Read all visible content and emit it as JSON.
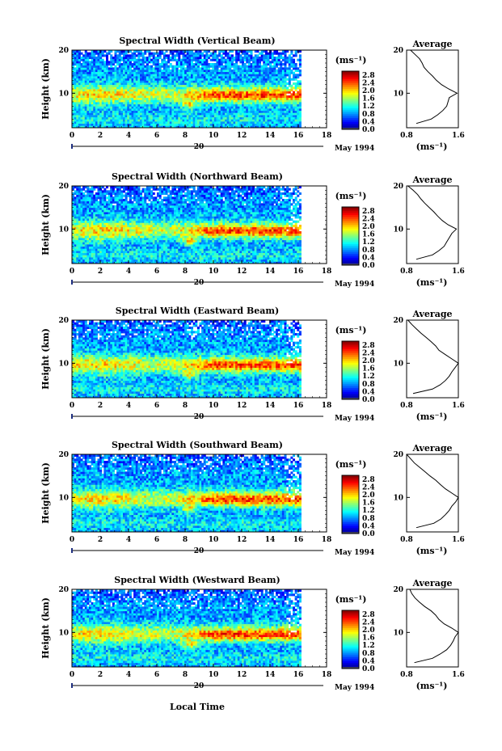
{
  "figure": {
    "date_label": "May 1994",
    "day_label": "20",
    "xlabel": "Local Time",
    "ylabel": "Height (km)",
    "unit_label": "(ms⁻¹)",
    "average_title": "Average",
    "average_xlabel": "(ms⁻¹)"
  },
  "chart_data": [
    {
      "type": "heatmap",
      "title": "Spectral Width (Vertical Beam)",
      "x_ticks": [
        "0",
        "2",
        "4",
        "6",
        "8",
        "10",
        "12",
        "14",
        "16",
        "18"
      ],
      "xlim": [
        0,
        18
      ],
      "y_ticks": [
        "10",
        "20"
      ],
      "ylim": [
        2,
        20
      ],
      "data_xlim": [
        0,
        16.2
      ],
      "colorbar": {
        "ticks": [
          "0.0",
          "0.4",
          "0.8",
          "1.2",
          "1.6",
          "2.0",
          "2.4",
          "2.8"
        ],
        "range": [
          0,
          3.0
        ]
      },
      "average": {
        "x_ticks": [
          "0.8",
          "1.6"
        ],
        "xlim": [
          0.8,
          1.6
        ],
        "profile_heights": [
          3,
          4,
          5,
          6,
          7,
          8,
          9,
          10,
          11,
          12,
          13,
          14,
          15,
          16,
          17,
          18,
          19,
          20
        ],
        "profile_values": [
          0.95,
          1.18,
          1.28,
          1.36,
          1.42,
          1.44,
          1.46,
          1.58,
          1.45,
          1.34,
          1.26,
          1.2,
          1.13,
          1.07,
          1.04,
          1.0,
          0.93,
          0.86
        ]
      }
    },
    {
      "type": "heatmap",
      "title": "Spectral Width (Northward Beam)",
      "x_ticks": [
        "0",
        "2",
        "4",
        "6",
        "8",
        "10",
        "12",
        "14",
        "16",
        "18"
      ],
      "xlim": [
        0,
        18
      ],
      "y_ticks": [
        "10",
        "20"
      ],
      "ylim": [
        2,
        20
      ],
      "data_xlim": [
        0,
        16.2
      ],
      "colorbar": {
        "ticks": [
          "0.0",
          "0.4",
          "0.8",
          "1.2",
          "1.6",
          "2.0",
          "2.4",
          "2.8"
        ],
        "range": [
          0,
          3.0
        ]
      },
      "average": {
        "x_ticks": [
          "0.8",
          "1.6"
        ],
        "xlim": [
          0.8,
          1.6
        ],
        "profile_heights": [
          3,
          4,
          5,
          6,
          7,
          8,
          9,
          10,
          11,
          12,
          13,
          14,
          15,
          16,
          17,
          18,
          19,
          20
        ],
        "profile_values": [
          0.95,
          1.2,
          1.3,
          1.38,
          1.42,
          1.46,
          1.5,
          1.57,
          1.44,
          1.35,
          1.28,
          1.22,
          1.15,
          1.08,
          1.02,
          0.97,
          0.9,
          0.82
        ]
      }
    },
    {
      "type": "heatmap",
      "title": "Spectral Width (Eastward Beam)",
      "x_ticks": [
        "0",
        "2",
        "4",
        "6",
        "8",
        "10",
        "12",
        "14",
        "16",
        "18"
      ],
      "xlim": [
        0,
        18
      ],
      "y_ticks": [
        "10",
        "20"
      ],
      "ylim": [
        2,
        20
      ],
      "data_xlim": [
        0,
        16.2
      ],
      "colorbar": {
        "ticks": [
          "0.0",
          "0.4",
          "0.8",
          "1.2",
          "1.6",
          "2.0",
          "2.4",
          "2.8"
        ],
        "range": [
          0,
          3.0
        ]
      },
      "average": {
        "x_ticks": [
          "0.8",
          "1.6"
        ],
        "xlim": [
          0.8,
          1.6
        ],
        "profile_heights": [
          3,
          4,
          5,
          6,
          7,
          8,
          9,
          10,
          11,
          12,
          13,
          14,
          15,
          16,
          17,
          18,
          19,
          20
        ],
        "profile_values": [
          0.9,
          1.2,
          1.32,
          1.4,
          1.46,
          1.5,
          1.55,
          1.6,
          1.5,
          1.4,
          1.3,
          1.25,
          1.18,
          1.1,
          1.02,
          0.95,
          0.88,
          0.82
        ]
      }
    },
    {
      "type": "heatmap",
      "title": "Spectral Width (Southward Beam)",
      "x_ticks": [
        "0",
        "2",
        "4",
        "6",
        "8",
        "10",
        "12",
        "14",
        "16",
        "18"
      ],
      "xlim": [
        0,
        18
      ],
      "y_ticks": [
        "10",
        "20"
      ],
      "ylim": [
        2,
        20
      ],
      "data_xlim": [
        0,
        16.2
      ],
      "colorbar": {
        "ticks": [
          "0.0",
          "0.4",
          "0.8",
          "1.2",
          "1.6",
          "2.0",
          "2.4",
          "2.8"
        ],
        "range": [
          0,
          3.0
        ]
      },
      "average": {
        "x_ticks": [
          "0.8",
          "1.6"
        ],
        "xlim": [
          0.8,
          1.6
        ],
        "profile_heights": [
          3,
          4,
          5,
          6,
          7,
          8,
          9,
          10,
          11,
          12,
          13,
          14,
          15,
          16,
          17,
          18,
          19,
          20
        ],
        "profile_values": [
          0.95,
          1.22,
          1.33,
          1.4,
          1.46,
          1.5,
          1.56,
          1.6,
          1.5,
          1.4,
          1.32,
          1.25,
          1.16,
          1.08,
          1.0,
          0.92,
          0.86,
          0.8
        ]
      }
    },
    {
      "type": "heatmap",
      "title": "Spectral Width (Westward Beam)",
      "x_ticks": [
        "0",
        "2",
        "4",
        "6",
        "8",
        "10",
        "12",
        "14",
        "16",
        "18"
      ],
      "xlim": [
        0,
        18
      ],
      "y_ticks": [
        "10",
        "20"
      ],
      "ylim": [
        2,
        20
      ],
      "data_xlim": [
        0,
        16.2
      ],
      "colorbar": {
        "ticks": [
          "0.0",
          "0.4",
          "0.8",
          "1.2",
          "1.6",
          "2.0",
          "2.4",
          "2.8"
        ],
        "range": [
          0,
          3.0
        ]
      },
      "average": {
        "x_ticks": [
          "0.8",
          "1.6"
        ],
        "xlim": [
          0.8,
          1.6
        ],
        "profile_heights": [
          3,
          4,
          5,
          6,
          7,
          8,
          9,
          10,
          11,
          12,
          13,
          14,
          15,
          16,
          17,
          18,
          19,
          20
        ],
        "profile_values": [
          0.92,
          1.2,
          1.32,
          1.42,
          1.48,
          1.52,
          1.55,
          1.6,
          1.5,
          1.38,
          1.3,
          1.25,
          1.18,
          1.08,
          1.0,
          0.93,
          0.88,
          0.85
        ]
      }
    }
  ]
}
